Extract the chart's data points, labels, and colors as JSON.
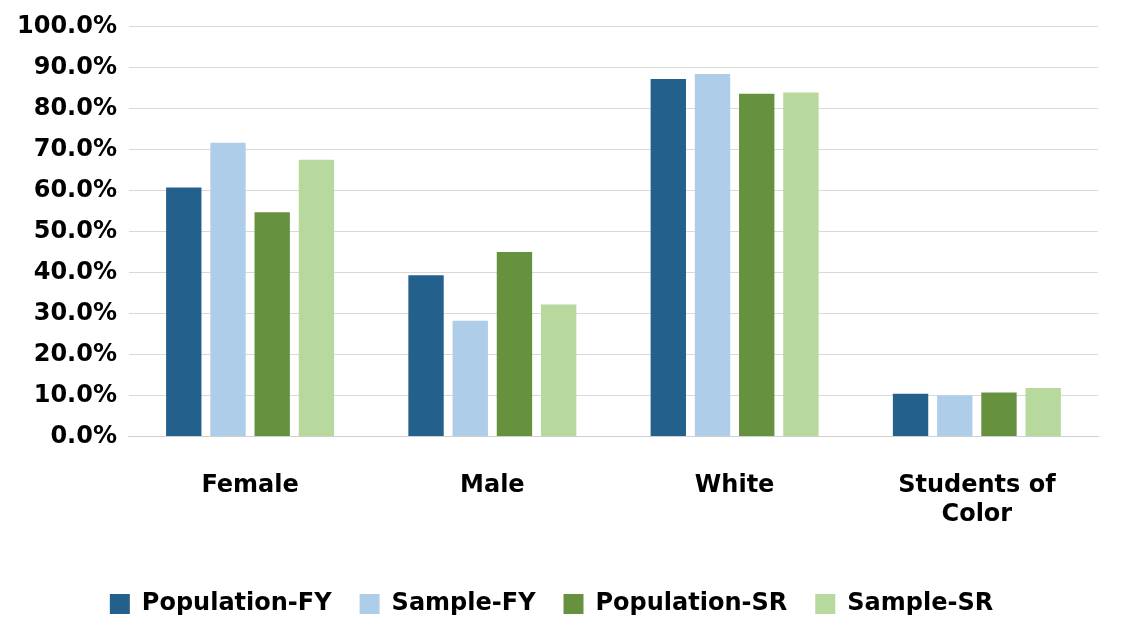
{
  "chart_data": {
    "type": "bar",
    "categories": [
      "Female",
      "Male",
      "White",
      "Students of Color"
    ],
    "series": [
      {
        "name": "Population-FY",
        "color": "#24608c",
        "values": [
          60.7,
          39.3,
          87.2,
          10.4
        ]
      },
      {
        "name": "Sample-FY",
        "color": "#aecde9",
        "values": [
          71.6,
          28.2,
          88.4,
          10.0
        ]
      },
      {
        "name": "Population-SR",
        "color": "#66923f",
        "values": [
          54.7,
          45.0,
          83.6,
          10.7
        ]
      },
      {
        "name": "Sample-SR",
        "color": "#b8d99e",
        "values": [
          67.5,
          32.2,
          83.9,
          11.8
        ]
      }
    ],
    "ylim": [
      0,
      100
    ],
    "yticks": [
      {
        "value": 0,
        "label": "0.0%"
      },
      {
        "value": 10,
        "label": "10.0%"
      },
      {
        "value": 20,
        "label": "20.0%"
      },
      {
        "value": 30,
        "label": "30.0%"
      },
      {
        "value": 40,
        "label": "40.0%"
      },
      {
        "value": 50,
        "label": "50.0%"
      },
      {
        "value": 60,
        "label": "60.0%"
      },
      {
        "value": 70,
        "label": "70.0%"
      },
      {
        "value": 80,
        "label": "80.0%"
      },
      {
        "value": 90,
        "label": "90.0%"
      },
      {
        "value": 100,
        "label": "100.0%"
      }
    ],
    "grid": "y",
    "legend": "bottom"
  }
}
